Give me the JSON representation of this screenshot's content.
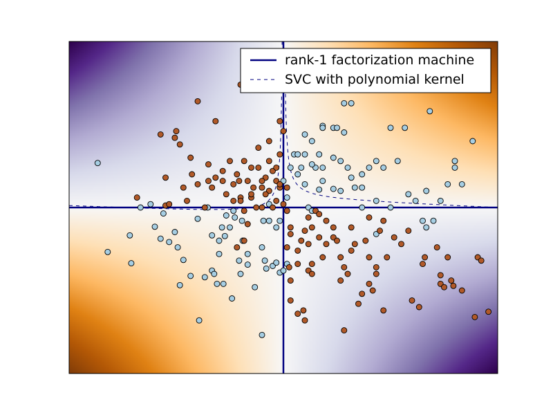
{
  "chart_data": {
    "type": "scatter",
    "title": "",
    "xlabel": "",
    "ylabel": "",
    "xlim": [
      -3.0,
      3.0
    ],
    "ylim": [
      -2.5,
      2.5
    ],
    "grid": false,
    "axis_ticks": false,
    "background": {
      "type": "decision-function-heatmap",
      "function": "x*y",
      "colormap": "PuOr",
      "negative_color": "#2d004b",
      "positive_color": "#7f3b08"
    },
    "legend": {
      "placement": "top-right",
      "entries": [
        {
          "label": "rank-1 factorization machine",
          "style": "solid",
          "color": "#000080"
        },
        {
          "label": "SVC with polynomial kernel",
          "style": "dashed",
          "color": "#000080"
        }
      ]
    },
    "colors": {
      "class_negative": "#a6cee3",
      "class_positive": "#b15928",
      "boundary": "#000080"
    },
    "series": [
      {
        "class": "negative",
        "points": [
          [
            -2.6,
            0.67
          ],
          [
            -2.46,
            -0.67
          ],
          [
            -2.13,
            -0.84
          ],
          [
            -2.15,
            -0.42
          ],
          [
            -2.0,
            0.0
          ],
          [
            -1.86,
            0.05
          ],
          [
            -1.8,
            -0.29
          ],
          [
            -1.72,
            -0.47
          ],
          [
            -1.68,
            -0.09
          ],
          [
            -1.6,
            -0.52
          ],
          [
            -1.52,
            -0.37
          ],
          [
            -1.48,
            -0.6
          ],
          [
            -1.4,
            -0.79
          ],
          [
            -1.45,
            -1.17
          ],
          [
            -1.3,
            -1.03
          ],
          [
            -1.2,
            -0.17
          ],
          [
            -1.1,
            -1.05
          ],
          [
            -1.06,
            0.0
          ],
          [
            -1.0,
            -0.42
          ],
          [
            -1.0,
            -0.95
          ],
          [
            -1.18,
            -1.7
          ],
          [
            -0.97,
            -1.0
          ],
          [
            -0.93,
            -1.15
          ],
          [
            -0.9,
            -0.7
          ],
          [
            -0.9,
            -0.5
          ],
          [
            -0.86,
            -0.3
          ],
          [
            -0.84,
            -1.15
          ],
          [
            -0.82,
            -0.43
          ],
          [
            -0.8,
            -0.12
          ],
          [
            -0.75,
            -0.3
          ],
          [
            -0.72,
            -1.37
          ],
          [
            -0.7,
            -0.05
          ],
          [
            -0.68,
            -0.15
          ],
          [
            -0.62,
            -0.8
          ],
          [
            -0.6,
            -1.0
          ],
          [
            -0.58,
            -0.2
          ],
          [
            -0.57,
            -0.5
          ],
          [
            -0.5,
            -0.7
          ],
          [
            -0.5,
            -0.86
          ],
          [
            -0.4,
            -1.2
          ],
          [
            -0.3,
            -0.6
          ],
          [
            -0.28,
            -0.2
          ],
          [
            -0.26,
            -0.8
          ],
          [
            -0.24,
            -0.92
          ],
          [
            -0.2,
            -0.2
          ],
          [
            -0.15,
            -0.88
          ],
          [
            -0.1,
            -0.3
          ],
          [
            -0.1,
            -0.83
          ],
          [
            -0.05,
            -0.2
          ],
          [
            -0.05,
            -0.98
          ],
          [
            -0.3,
            -1.92
          ],
          [
            0.0,
            -0.95
          ],
          [
            0.05,
            -0.85
          ],
          [
            0.1,
            0.6
          ],
          [
            0.15,
            0.8
          ],
          [
            0.2,
            0.5
          ],
          [
            0.25,
            0.6
          ],
          [
            0.3,
            0.35
          ],
          [
            0.35,
            0.0
          ],
          [
            0.4,
            -0.05
          ],
          [
            0.45,
            0.6
          ],
          [
            0.5,
            0.27
          ],
          [
            0.3,
            1.1
          ],
          [
            0.3,
            0.8
          ],
          [
            0.4,
            1.0
          ],
          [
            0.5,
            0.8
          ],
          [
            0.55,
            1.23
          ],
          [
            0.55,
            0.6
          ],
          [
            0.7,
            1.2
          ],
          [
            0.7,
            0.75
          ],
          [
            0.8,
            0.25
          ],
          [
            0.85,
            1.13
          ],
          [
            0.9,
            0.6
          ],
          [
            0.7,
            0.28
          ],
          [
            0.8,
            0.7
          ],
          [
            0.95,
            0.45
          ],
          [
            1.0,
            0.3
          ],
          [
            1.1,
            0.5
          ],
          [
            1.1,
            0.3
          ],
          [
            1.1,
            0.0
          ],
          [
            1.2,
            0.6
          ],
          [
            1.3,
            0.7
          ],
          [
            1.3,
            0.1
          ],
          [
            1.4,
            0.6
          ],
          [
            1.5,
            0.0
          ],
          [
            1.6,
            0.7
          ],
          [
            1.7,
            1.2
          ],
          [
            1.75,
            0.2
          ],
          [
            1.85,
            0.1
          ],
          [
            1.95,
            -0.2
          ],
          [
            2.0,
            0.25
          ],
          [
            2.1,
            -0.2
          ],
          [
            2.4,
            0.6
          ],
          [
            2.65,
            1.0
          ],
          [
            2.4,
            0.7
          ],
          [
            2.5,
            0.35
          ],
          [
            1.5,
            1.2
          ],
          [
            1.3,
            -0.4
          ],
          [
            2.3,
            0.35
          ],
          [
            2.2,
            0.1
          ],
          [
            2.0,
            -0.3
          ],
          [
            0.95,
            1.57
          ],
          [
            0.85,
            1.57
          ],
          [
            0.55,
            1.2
          ],
          [
            0.0,
            0.4
          ],
          [
            0.05,
            0.15
          ],
          [
            0.2,
            0.8
          ],
          [
            0.4,
            0.65
          ],
          [
            0.55,
            0.4
          ],
          [
            0.75,
            1.2
          ],
          [
            2.05,
            1.45
          ],
          [
            -0.2,
            0.05
          ]
        ]
      },
      {
        "class": "positive",
        "points": [
          [
            -2.05,
            0.15
          ],
          [
            -1.72,
            1.1
          ],
          [
            -1.5,
            1.15
          ],
          [
            -1.52,
            1.05
          ],
          [
            -1.45,
            0.95
          ],
          [
            -1.3,
            0.75
          ],
          [
            -1.28,
            0.5
          ],
          [
            -1.65,
            0.45
          ],
          [
            -1.65,
            0.03
          ],
          [
            -1.6,
            0.05
          ],
          [
            -1.35,
            0.1
          ],
          [
            -1.2,
            1.6
          ],
          [
            -1.1,
            0.0
          ],
          [
            -1.05,
            0.65
          ],
          [
            -1.0,
            0.3
          ],
          [
            -0.85,
            0.4
          ],
          [
            -0.8,
            0.2
          ],
          [
            -0.7,
            0.35
          ],
          [
            -0.65,
            0.5
          ],
          [
            -0.6,
            0.15
          ],
          [
            -0.55,
            0.7
          ],
          [
            -0.5,
            0.4
          ],
          [
            -0.45,
            0.6
          ],
          [
            -0.42,
            0.3
          ],
          [
            -0.38,
            0.0
          ],
          [
            -0.3,
            0.0
          ],
          [
            -0.25,
            0.45
          ],
          [
            -0.2,
            0.7
          ],
          [
            -0.2,
            0.25
          ],
          [
            -0.15,
            0.0
          ],
          [
            -0.1,
            0.1
          ],
          [
            -0.05,
            0.3
          ],
          [
            -0.05,
            0.8
          ],
          [
            -0.1,
            0.4
          ],
          [
            -0.15,
            0.55
          ],
          [
            -0.25,
            0.2
          ],
          [
            -0.35,
            0.6
          ],
          [
            -0.45,
            0.15
          ],
          [
            -0.5,
            -0.25
          ],
          [
            -0.6,
            0.1
          ],
          [
            -0.65,
            -0.6
          ],
          [
            -0.55,
            -0.05
          ],
          [
            -0.45,
            0.2
          ],
          [
            -0.35,
            0.9
          ],
          [
            -0.2,
            1.0
          ],
          [
            -0.1,
            0.6
          ],
          [
            -0.05,
            0.35
          ],
          [
            -0.05,
            1.3
          ],
          [
            -0.6,
            1.85
          ],
          [
            -0.85,
            0.55
          ],
          [
            -0.95,
            1.3
          ],
          [
            -1.05,
            0.4
          ],
          [
            -1.2,
            0.35
          ],
          [
            -1.4,
            0.3
          ],
          [
            -0.75,
            0.7
          ],
          [
            -0.62,
            0.4
          ],
          [
            -0.7,
            0.1
          ],
          [
            -0.3,
            0.3
          ],
          [
            -0.3,
            0.4
          ],
          [
            -0.55,
            -0.5
          ],
          [
            -0.95,
            0.45
          ],
          [
            0.0,
            0.05
          ],
          [
            0.0,
            1.15
          ],
          [
            0.05,
            0.3
          ],
          [
            0.05,
            -0.05
          ],
          [
            0.05,
            -0.6
          ],
          [
            0.08,
            -0.9
          ],
          [
            0.1,
            -0.3
          ],
          [
            0.1,
            -0.4
          ],
          [
            0.1,
            -1.1
          ],
          [
            0.1,
            -1.4
          ],
          [
            0.2,
            -0.65
          ],
          [
            0.2,
            -0.85
          ],
          [
            0.2,
            -1.6
          ],
          [
            0.25,
            -0.5
          ],
          [
            0.28,
            -1.55
          ],
          [
            0.3,
            -0.35
          ],
          [
            0.35,
            -0.15
          ],
          [
            0.35,
            -0.55
          ],
          [
            0.35,
            -0.95
          ],
          [
            0.4,
            -0.3
          ],
          [
            0.4,
            -0.85
          ],
          [
            0.4,
            -1.0
          ],
          [
            0.45,
            -0.05
          ],
          [
            0.5,
            -0.1
          ],
          [
            0.5,
            -0.45
          ],
          [
            0.55,
            -0.75
          ],
          [
            0.6,
            -0.2
          ],
          [
            0.6,
            -0.55
          ],
          [
            0.7,
            -0.3
          ],
          [
            0.7,
            -0.45
          ],
          [
            0.75,
            -0.5
          ],
          [
            0.8,
            -0.75
          ],
          [
            0.85,
            -0.9
          ],
          [
            0.8,
            -1.1
          ],
          [
            0.9,
            -1.0
          ],
          [
            0.95,
            -0.65
          ],
          [
            0.95,
            -0.3
          ],
          [
            1.0,
            -0.55
          ],
          [
            1.1,
            -1.3
          ],
          [
            1.15,
            -0.5
          ],
          [
            1.2,
            -0.15
          ],
          [
            1.2,
            -0.75
          ],
          [
            1.2,
            -1.15
          ],
          [
            1.25,
            -1.25
          ],
          [
            1.3,
            -1.0
          ],
          [
            1.3,
            -0.9
          ],
          [
            1.35,
            -0.35
          ],
          [
            1.4,
            -0.2
          ],
          [
            1.45,
            -0.75
          ],
          [
            1.55,
            -0.45
          ],
          [
            1.65,
            -0.55
          ],
          [
            1.75,
            -0.35
          ],
          [
            1.8,
            -1.4
          ],
          [
            1.95,
            -0.85
          ],
          [
            1.98,
            -0.75
          ],
          [
            2.15,
            -0.6
          ],
          [
            2.3,
            -0.75
          ],
          [
            2.2,
            -1.15
          ],
          [
            2.25,
            -1.2
          ],
          [
            2.5,
            -1.25
          ],
          [
            1.4,
            -1.55
          ],
          [
            1.9,
            -1.5
          ],
          [
            2.35,
            -1.1
          ],
          [
            2.2,
            -1.02
          ],
          [
            2.38,
            -1.18
          ],
          [
            1.05,
            -1.45
          ],
          [
            0.3,
            -1.7
          ],
          [
            2.72,
            -0.75
          ],
          [
            2.77,
            -0.8
          ],
          [
            2.68,
            -1.65
          ],
          [
            2.87,
            -1.57
          ],
          [
            0.85,
            -1.85
          ]
        ]
      }
    ]
  }
}
